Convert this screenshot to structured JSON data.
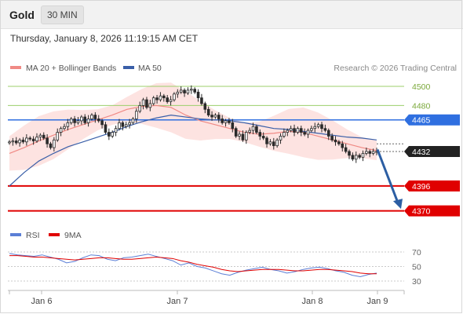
{
  "header": {
    "title": "Gold",
    "timeframe": "30 MIN"
  },
  "timestamp": "Thursday, January 8, 2026 11:19:15 AM CET",
  "legend": {
    "ma20_bb": "MA 20 + Bollinger Bands",
    "ma50": "MA 50",
    "source": "Research © 2026 Trading Central"
  },
  "rsi_legend": {
    "rsi": "RSI",
    "ma9": "9MA"
  },
  "colors": {
    "candle_up": "#2a2a2a",
    "candle_down": "#2a2a2a",
    "ma20": "#f08a85",
    "bollinger_fill": "#fde0de",
    "ma50": "#3a5fa8",
    "level_green": "#9ccf6b",
    "level_blue": "#2f6fe0",
    "level_red": "#e00000",
    "current_tag": "#222222",
    "rsi_line": "#5b7fd6",
    "rsi_ma": "#e00000",
    "arrow": "#2c5ea3"
  },
  "chart_data": {
    "type": "candlestick",
    "instrument": "Gold",
    "interval": "30 MIN",
    "y_range": [
      4365,
      4510
    ],
    "x_labels": [
      "Jan 6",
      "Jan 7",
      "Jan 8",
      "Jan 9"
    ],
    "levels": [
      {
        "value": 4500,
        "label": "4500",
        "kind": "resistance-green"
      },
      {
        "value": 4480,
        "label": "4480",
        "kind": "resistance-green"
      },
      {
        "value": 4465,
        "label": "4465",
        "kind": "pivot-blue"
      },
      {
        "value": 4432,
        "label": "4432",
        "kind": "current-price"
      },
      {
        "value": 4396,
        "label": "4396",
        "kind": "support-red"
      },
      {
        "value": 4370,
        "label": "4370",
        "kind": "support-red"
      }
    ],
    "series": [
      {
        "name": "Price",
        "values": [
          4442,
          4443,
          4441,
          4444,
          4442,
          4446,
          4445,
          4443,
          4447,
          4449,
          4446,
          4440,
          4436,
          4444,
          4452,
          4456,
          4458,
          4462,
          4466,
          4462,
          4464,
          4468,
          4462,
          4466,
          4470,
          4466,
          4464,
          4460,
          4452,
          4448,
          4452,
          4456,
          4462,
          4458,
          4460,
          4462,
          4466,
          4474,
          4480,
          4486,
          4478,
          4482,
          4488,
          4486,
          4490,
          4488,
          4484,
          4486,
          4492,
          4494,
          4496,
          4493,
          4496,
          4497,
          4494,
          4488,
          4482,
          4476,
          4470,
          4468,
          4470,
          4466,
          4462,
          4464,
          4462,
          4456,
          4448,
          4450,
          4444,
          4452,
          4454,
          4458,
          4452,
          4448,
          4446,
          4440,
          4442,
          4438,
          4444,
          4448,
          4452,
          4454,
          4456,
          4452,
          4456,
          4452,
          4450,
          4454,
          4456,
          4458,
          4460,
          4456,
          4454,
          4448,
          4444,
          4442,
          4440,
          4436,
          4432,
          4428,
          4424,
          4428,
          4426,
          4430,
          4432,
          4430,
          4432,
          4432
        ]
      },
      {
        "name": "MA 20",
        "values": [
          4430,
          4436,
          4443,
          4449,
          4455,
          4460,
          4465,
          4470,
          4476,
          4479,
          4480,
          4478,
          4470,
          4464,
          4460,
          4456,
          4452,
          4450,
          4451,
          4453,
          4452,
          4448,
          4444,
          4440,
          4436,
          4433
        ]
      },
      {
        "name": "MA 50",
        "values": [
          4396,
          4410,
          4422,
          4430,
          4437,
          4442,
          4447,
          4452,
          4458,
          4463,
          4467,
          4470,
          4468,
          4466,
          4465,
          4464,
          4462,
          4459,
          4456,
          4455,
          4453,
          4451,
          4449,
          4447,
          4446,
          4444
        ]
      }
    ],
    "rsi": {
      "y_ticks": [
        70,
        50,
        30
      ],
      "values": [
        68,
        66,
        65,
        64,
        66,
        63,
        60,
        55,
        57,
        62,
        66,
        65,
        60,
        58,
        62,
        63,
        65,
        67,
        64,
        61,
        58,
        52,
        55,
        50,
        48,
        44,
        40,
        38,
        42,
        45,
        47,
        49,
        46,
        44,
        41,
        43,
        46,
        48,
        49,
        47,
        44,
        42,
        38,
        36,
        39,
        41
      ],
      "ma9": [
        65,
        65,
        64,
        63,
        63,
        62,
        61,
        60,
        59,
        60,
        61,
        62,
        62,
        61,
        60,
        60,
        61,
        62,
        63,
        62,
        61,
        58,
        56,
        53,
        51,
        49,
        46,
        44,
        43,
        44,
        45,
        46,
        46,
        46,
        45,
        44,
        44,
        45,
        46,
        46,
        45,
        44,
        43,
        41,
        40,
        40
      ]
    }
  }
}
